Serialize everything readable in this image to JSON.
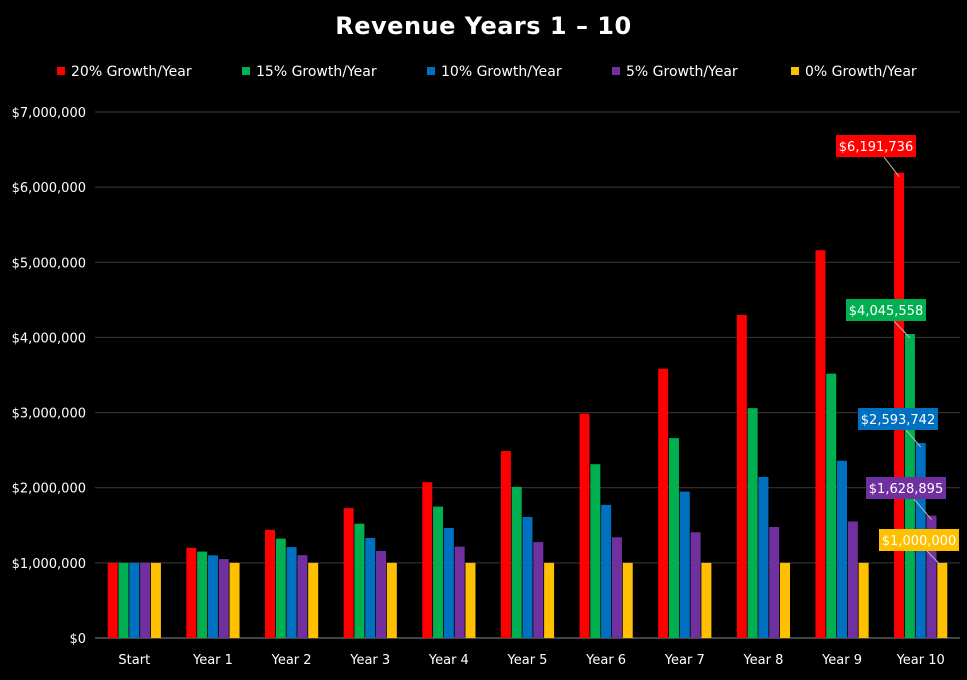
{
  "chart_data": {
    "type": "bar",
    "title": "Revenue Years 1 – 10",
    "xlabel": "",
    "ylabel": "",
    "ylim": [
      0,
      7000000
    ],
    "yticks": [
      0,
      1000000,
      2000000,
      3000000,
      4000000,
      5000000,
      6000000,
      7000000
    ],
    "ytick_labels": [
      "$0",
      "$1,000,000",
      "$2,000,000",
      "$3,000,000",
      "$4,000,000",
      "$5,000,000",
      "$6,000,000",
      "$7,000,000"
    ],
    "grid": true,
    "legend_position": "top",
    "categories": [
      "Start",
      "Year 1",
      "Year 2",
      "Year 3",
      "Year 4",
      "Year 5",
      "Year 6",
      "Year 7",
      "Year 8",
      "Year 9",
      "Year 10"
    ],
    "series": [
      {
        "name": "20% Growth/Year",
        "color": "#ff0000",
        "values": [
          1000000,
          1200000,
          1440000,
          1728000,
          2073600,
          2488320,
          2985984,
          3583181,
          4299817,
          5159780,
          6191736
        ]
      },
      {
        "name": "15% Growth/Year",
        "color": "#00b050",
        "values": [
          1000000,
          1150000,
          1322500,
          1520875,
          1749006,
          2011357,
          2313061,
          2660020,
          3059023,
          3517876,
          4045558
        ]
      },
      {
        "name": "10% Growth/Year",
        "color": "#0070c0",
        "values": [
          1000000,
          1100000,
          1210000,
          1331000,
          1464100,
          1610510,
          1771561,
          1948717,
          2143589,
          2357948,
          2593742
        ]
      },
      {
        "name": "5% Growth/Year",
        "color": "#7030a0",
        "values": [
          1000000,
          1050000,
          1102500,
          1157625,
          1215506,
          1276282,
          1340096,
          1407100,
          1477455,
          1551328,
          1628895
        ]
      },
      {
        "name": "0% Growth/Year",
        "color": "#ffc000",
        "values": [
          1000000,
          1000000,
          1000000,
          1000000,
          1000000,
          1000000,
          1000000,
          1000000,
          1000000,
          1000000,
          1000000
        ]
      }
    ],
    "annotations": [
      {
        "series": 0,
        "category": "Year 10",
        "text": "$6,191,736",
        "background": "#ff0000"
      },
      {
        "series": 1,
        "category": "Year 10",
        "text": "$4,045,558",
        "background": "#00b050"
      },
      {
        "series": 2,
        "category": "Year 10",
        "text": "$2,593,742",
        "background": "#0070c0"
      },
      {
        "series": 3,
        "category": "Year 10",
        "text": "$1,628,895",
        "background": "#7030a0"
      },
      {
        "series": 4,
        "category": "Year 10",
        "text": "$1,000,000",
        "background": "#ffc000"
      }
    ]
  }
}
